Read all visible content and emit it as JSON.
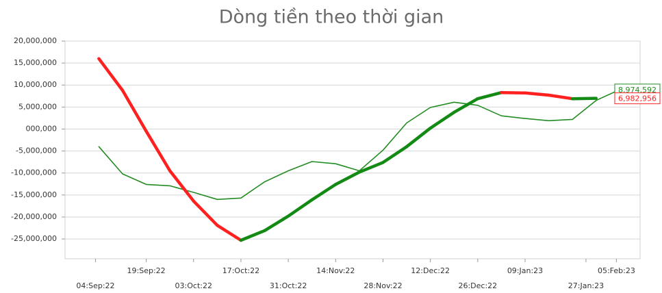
{
  "chart_data": {
    "type": "line",
    "title": "Dòng tiền theo thời gian",
    "x": [
      "05:Sep:22",
      "12:Sep:22",
      "19:Sep:22",
      "26:Sep:22",
      "03:Oct:22",
      "10:Oct:22",
      "17:Oct:22",
      "24:Oct:22",
      "31:Oct:22",
      "07:Nov:22",
      "14:Nov:22",
      "21:Nov:22",
      "28:Nov:22",
      "05:Dec:22",
      "12:Dec:22",
      "19:Dec:22",
      "26:Dec:22",
      "02:Jan:23",
      "09:Jan:23",
      "16:Jan:23",
      "23:Jan:23",
      "30:Jan:23",
      "06:Feb:23"
    ],
    "series": [
      {
        "color": "#228b22",
        "width": 1.6,
        "values": [
          -4000000,
          -10200000,
          -12600000,
          -12900000,
          -14400000,
          -16000000,
          -15700000,
          -12000000,
          -9500000,
          -7400000,
          -7900000,
          -9500000,
          -4800000,
          1400000,
          4900000,
          6100000,
          5400000,
          3000000,
          2400000,
          1900000,
          2200000,
          6500000,
          8974592
        ],
        "value_labels": [
          null,
          null,
          null,
          null,
          null,
          null,
          null,
          null,
          null,
          null,
          null,
          null,
          null,
          null,
          null,
          null,
          null,
          null,
          null,
          null,
          null,
          null,
          "8,974,592"
        ]
      },
      {
        "up_color": "#138a13",
        "down_color": "#ff2020",
        "width": 4.5,
        "values": [
          16000000,
          8800000,
          -500000,
          -9500000,
          -16400000,
          -21900000,
          -25300000,
          -23100000,
          -19800000,
          -16100000,
          -12600000,
          -9800000,
          -7600000,
          -4000000,
          200000,
          3800000,
          6900000,
          8300000,
          8200000,
          7700000,
          6900000,
          6982956,
          null
        ],
        "value_labels": [
          null,
          null,
          null,
          null,
          null,
          null,
          null,
          null,
          null,
          null,
          null,
          null,
          null,
          null,
          null,
          null,
          null,
          null,
          null,
          null,
          null,
          "6,982,956",
          null
        ]
      }
    ],
    "xlim": [
      "26:Aug:22",
      "12:Feb:23"
    ],
    "xticks": [
      "04:Sep:22",
      "19:Sep:22",
      "03:Oct:22",
      "17:Oct:22",
      "31:Oct:22",
      "14:Nov:22",
      "28:Nov:22",
      "12:Dec:22",
      "26:Dec:22",
      "09:Jan:23",
      "27:Jan:23",
      "05:Feb:23"
    ],
    "ylim": [
      -29500000,
      20000000
    ],
    "yticks": [
      {
        "value": 20000000,
        "label": "20,000,000"
      },
      {
        "value": 15000000,
        "label": "15,000,000"
      },
      {
        "value": 10000000,
        "label": "10,000,000"
      },
      {
        "value": 5000000,
        "label": "5,000,000"
      },
      {
        "value": 0,
        "label": "000,000"
      },
      {
        "value": -5000000,
        "label": "-5,000,000"
      },
      {
        "value": -10000000,
        "label": "-10,000,000"
      },
      {
        "value": -15000000,
        "label": "-15,000,000"
      },
      {
        "value": -20000000,
        "label": "-20,000,000"
      },
      {
        "value": -25000000,
        "label": "-25,000,000"
      }
    ],
    "grid": true
  }
}
